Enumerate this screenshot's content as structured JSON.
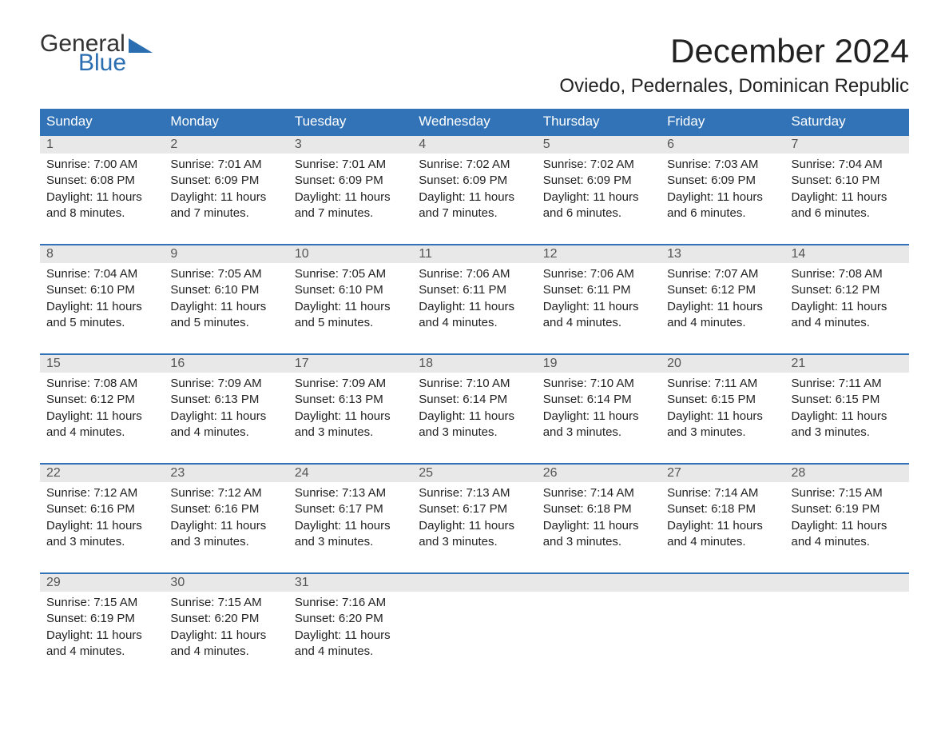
{
  "logo": {
    "line1": "General",
    "line2": "Blue",
    "accent_color": "#2a6db0"
  },
  "title": "December 2024",
  "location": "Oviedo, Pedernales, Dominican Republic",
  "colors": {
    "header_bg": "#3173b6",
    "header_text": "#ffffff",
    "daynum_bg": "#e8e8e8",
    "week_border": "#3173b6",
    "body_text": "#222222"
  },
  "dow": [
    "Sunday",
    "Monday",
    "Tuesday",
    "Wednesday",
    "Thursday",
    "Friday",
    "Saturday"
  ],
  "weeks": [
    [
      {
        "n": "1",
        "sr": "Sunrise: 7:00 AM",
        "ss": "Sunset: 6:08 PM",
        "d1": "Daylight: 11 hours",
        "d2": "and 8 minutes."
      },
      {
        "n": "2",
        "sr": "Sunrise: 7:01 AM",
        "ss": "Sunset: 6:09 PM",
        "d1": "Daylight: 11 hours",
        "d2": "and 7 minutes."
      },
      {
        "n": "3",
        "sr": "Sunrise: 7:01 AM",
        "ss": "Sunset: 6:09 PM",
        "d1": "Daylight: 11 hours",
        "d2": "and 7 minutes."
      },
      {
        "n": "4",
        "sr": "Sunrise: 7:02 AM",
        "ss": "Sunset: 6:09 PM",
        "d1": "Daylight: 11 hours",
        "d2": "and 7 minutes."
      },
      {
        "n": "5",
        "sr": "Sunrise: 7:02 AM",
        "ss": "Sunset: 6:09 PM",
        "d1": "Daylight: 11 hours",
        "d2": "and 6 minutes."
      },
      {
        "n": "6",
        "sr": "Sunrise: 7:03 AM",
        "ss": "Sunset: 6:09 PM",
        "d1": "Daylight: 11 hours",
        "d2": "and 6 minutes."
      },
      {
        "n": "7",
        "sr": "Sunrise: 7:04 AM",
        "ss": "Sunset: 6:10 PM",
        "d1": "Daylight: 11 hours",
        "d2": "and 6 minutes."
      }
    ],
    [
      {
        "n": "8",
        "sr": "Sunrise: 7:04 AM",
        "ss": "Sunset: 6:10 PM",
        "d1": "Daylight: 11 hours",
        "d2": "and 5 minutes."
      },
      {
        "n": "9",
        "sr": "Sunrise: 7:05 AM",
        "ss": "Sunset: 6:10 PM",
        "d1": "Daylight: 11 hours",
        "d2": "and 5 minutes."
      },
      {
        "n": "10",
        "sr": "Sunrise: 7:05 AM",
        "ss": "Sunset: 6:10 PM",
        "d1": "Daylight: 11 hours",
        "d2": "and 5 minutes."
      },
      {
        "n": "11",
        "sr": "Sunrise: 7:06 AM",
        "ss": "Sunset: 6:11 PM",
        "d1": "Daylight: 11 hours",
        "d2": "and 4 minutes."
      },
      {
        "n": "12",
        "sr": "Sunrise: 7:06 AM",
        "ss": "Sunset: 6:11 PM",
        "d1": "Daylight: 11 hours",
        "d2": "and 4 minutes."
      },
      {
        "n": "13",
        "sr": "Sunrise: 7:07 AM",
        "ss": "Sunset: 6:12 PM",
        "d1": "Daylight: 11 hours",
        "d2": "and 4 minutes."
      },
      {
        "n": "14",
        "sr": "Sunrise: 7:08 AM",
        "ss": "Sunset: 6:12 PM",
        "d1": "Daylight: 11 hours",
        "d2": "and 4 minutes."
      }
    ],
    [
      {
        "n": "15",
        "sr": "Sunrise: 7:08 AM",
        "ss": "Sunset: 6:12 PM",
        "d1": "Daylight: 11 hours",
        "d2": "and 4 minutes."
      },
      {
        "n": "16",
        "sr": "Sunrise: 7:09 AM",
        "ss": "Sunset: 6:13 PM",
        "d1": "Daylight: 11 hours",
        "d2": "and 4 minutes."
      },
      {
        "n": "17",
        "sr": "Sunrise: 7:09 AM",
        "ss": "Sunset: 6:13 PM",
        "d1": "Daylight: 11 hours",
        "d2": "and 3 minutes."
      },
      {
        "n": "18",
        "sr": "Sunrise: 7:10 AM",
        "ss": "Sunset: 6:14 PM",
        "d1": "Daylight: 11 hours",
        "d2": "and 3 minutes."
      },
      {
        "n": "19",
        "sr": "Sunrise: 7:10 AM",
        "ss": "Sunset: 6:14 PM",
        "d1": "Daylight: 11 hours",
        "d2": "and 3 minutes."
      },
      {
        "n": "20",
        "sr": "Sunrise: 7:11 AM",
        "ss": "Sunset: 6:15 PM",
        "d1": "Daylight: 11 hours",
        "d2": "and 3 minutes."
      },
      {
        "n": "21",
        "sr": "Sunrise: 7:11 AM",
        "ss": "Sunset: 6:15 PM",
        "d1": "Daylight: 11 hours",
        "d2": "and 3 minutes."
      }
    ],
    [
      {
        "n": "22",
        "sr": "Sunrise: 7:12 AM",
        "ss": "Sunset: 6:16 PM",
        "d1": "Daylight: 11 hours",
        "d2": "and 3 minutes."
      },
      {
        "n": "23",
        "sr": "Sunrise: 7:12 AM",
        "ss": "Sunset: 6:16 PM",
        "d1": "Daylight: 11 hours",
        "d2": "and 3 minutes."
      },
      {
        "n": "24",
        "sr": "Sunrise: 7:13 AM",
        "ss": "Sunset: 6:17 PM",
        "d1": "Daylight: 11 hours",
        "d2": "and 3 minutes."
      },
      {
        "n": "25",
        "sr": "Sunrise: 7:13 AM",
        "ss": "Sunset: 6:17 PM",
        "d1": "Daylight: 11 hours",
        "d2": "and 3 minutes."
      },
      {
        "n": "26",
        "sr": "Sunrise: 7:14 AM",
        "ss": "Sunset: 6:18 PM",
        "d1": "Daylight: 11 hours",
        "d2": "and 3 minutes."
      },
      {
        "n": "27",
        "sr": "Sunrise: 7:14 AM",
        "ss": "Sunset: 6:18 PM",
        "d1": "Daylight: 11 hours",
        "d2": "and 4 minutes."
      },
      {
        "n": "28",
        "sr": "Sunrise: 7:15 AM",
        "ss": "Sunset: 6:19 PM",
        "d1": "Daylight: 11 hours",
        "d2": "and 4 minutes."
      }
    ],
    [
      {
        "n": "29",
        "sr": "Sunrise: 7:15 AM",
        "ss": "Sunset: 6:19 PM",
        "d1": "Daylight: 11 hours",
        "d2": "and 4 minutes."
      },
      {
        "n": "30",
        "sr": "Sunrise: 7:15 AM",
        "ss": "Sunset: 6:20 PM",
        "d1": "Daylight: 11 hours",
        "d2": "and 4 minutes."
      },
      {
        "n": "31",
        "sr": "Sunrise: 7:16 AM",
        "ss": "Sunset: 6:20 PM",
        "d1": "Daylight: 11 hours",
        "d2": "and 4 minutes."
      },
      {
        "n": "",
        "sr": "",
        "ss": "",
        "d1": "",
        "d2": ""
      },
      {
        "n": "",
        "sr": "",
        "ss": "",
        "d1": "",
        "d2": ""
      },
      {
        "n": "",
        "sr": "",
        "ss": "",
        "d1": "",
        "d2": ""
      },
      {
        "n": "",
        "sr": "",
        "ss": "",
        "d1": "",
        "d2": ""
      }
    ]
  ]
}
